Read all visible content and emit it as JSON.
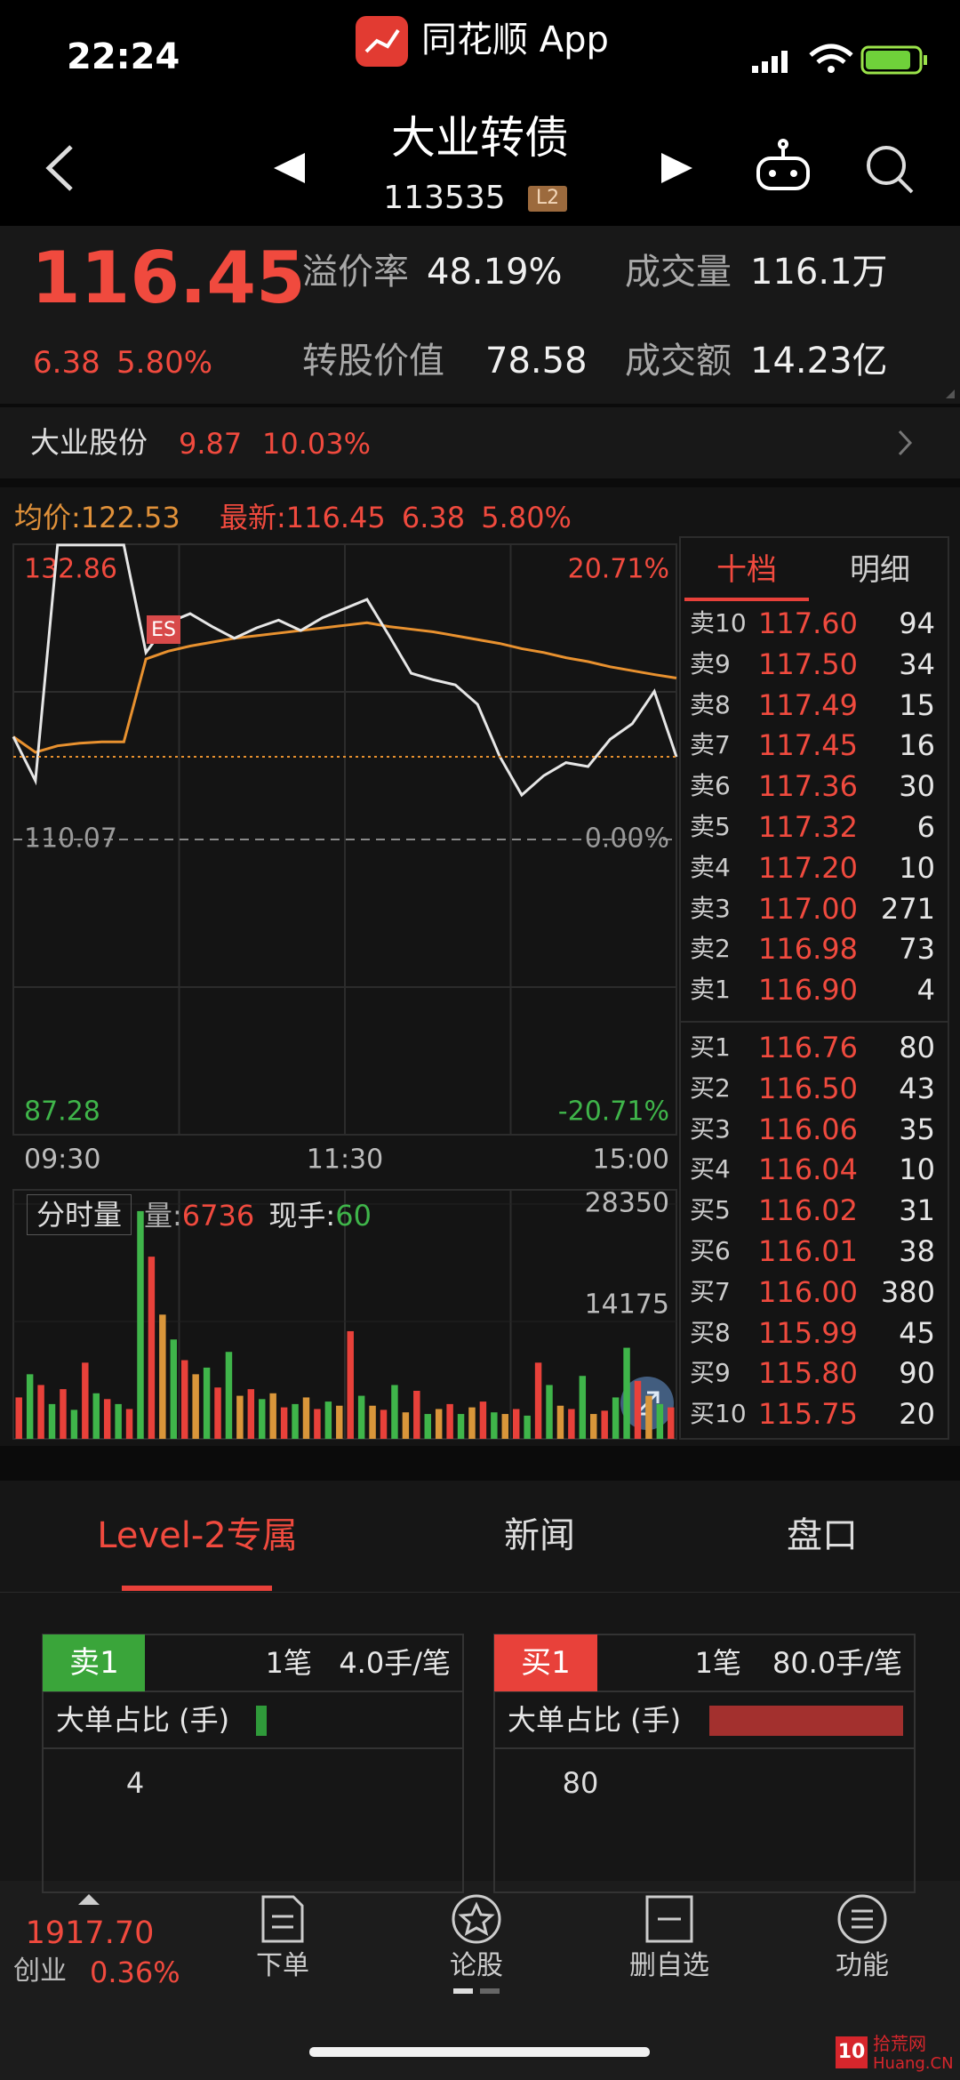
{
  "status_bar": {
    "time": "22:24",
    "app": "同花顺 App"
  },
  "header": {
    "title": "大业转债",
    "code": "113535",
    "badge": "L2"
  },
  "quote": {
    "price": "116.45",
    "change": "6.38",
    "change_pct": "5.80%",
    "items": [
      {
        "label": "溢价率",
        "value": "48.19%"
      },
      {
        "label": "成交量",
        "value": "116.1万"
      },
      {
        "label": "转股价值",
        "value": "78.58"
      },
      {
        "label": "成交额",
        "value": "14.23亿"
      }
    ]
  },
  "stock": {
    "name": "大业股份",
    "price": "9.87",
    "change_pct": "10.03%"
  },
  "chart_data": [
    {
      "type": "line",
      "xlim": [
        0,
        240
      ],
      "xticks": [
        {
          "value": 0,
          "label": "09:30"
        },
        {
          "value": 120,
          "label": "11:30"
        },
        {
          "value": 240,
          "label": "15:00"
        }
      ],
      "ylim": [
        87.28,
        132.86
      ],
      "yticks": [
        87.28,
        110.07,
        132.86
      ],
      "y2lim": [
        -20.71,
        20.71
      ],
      "y2ticks": [
        {
          "value": -20.71,
          "label": "-20.71%"
        },
        {
          "value": 0,
          "label": "0.00%"
        },
        {
          "value": 20.71,
          "label": "20.71%"
        }
      ],
      "tick_colors": [
        "#3fb54a",
        "#9a9a9a",
        "#f04a3e"
      ],
      "grid": true,
      "annotations": [
        "ES"
      ],
      "series": [
        {
          "name": "最新:",
          "color": "#e6e6e6",
          "values": [
            118.0,
            114.6,
            132.8,
            132.8,
            132.8,
            132.8,
            124.5,
            126.8,
            127.5,
            126.5,
            125.6,
            126.4,
            127.0,
            126.2,
            127.2,
            127.9,
            128.6,
            125.8,
            122.9,
            122.4,
            122.0,
            120.5,
            116.5,
            113.5,
            115.0,
            116.0,
            115.7,
            117.8,
            119.0,
            121.5,
            116.45
          ]
        },
        {
          "name": "均价:",
          "color": "#e8912f",
          "values": [
            118.0,
            116.8,
            117.3,
            117.5,
            117.6,
            117.6,
            124.0,
            124.6,
            125.0,
            125.3,
            125.6,
            125.8,
            126.0,
            126.2,
            126.4,
            126.6,
            126.8,
            126.5,
            126.3,
            126.1,
            125.8,
            125.5,
            125.2,
            124.8,
            124.5,
            124.1,
            123.8,
            123.4,
            123.1,
            122.8,
            122.53
          ]
        }
      ]
    },
    {
      "type": "bar",
      "ylim": [
        0,
        28350
      ],
      "yticks": [
        14175,
        28350
      ],
      "values": [
        5000,
        7800,
        6500,
        4200,
        6000,
        3500,
        9200,
        5500,
        4800,
        4200,
        3600,
        27500,
        22000,
        15000,
        12000,
        9500,
        7800,
        8600,
        6200,
        10500,
        5200,
        6000,
        4800,
        5500,
        3800,
        4200,
        5000,
        3600,
        4500,
        4000,
        13000,
        5200,
        4000,
        3500,
        6500,
        3200,
        5800,
        3000,
        3600,
        4200,
        3000,
        3800,
        4500,
        3200,
        3000,
        3600,
        2800,
        9200,
        6500,
        4000,
        3600,
        7600,
        3000,
        3400,
        5000,
        11000,
        7000,
        5200,
        4200,
        3800
      ],
      "colors": [
        "#e8413a",
        "#3fb54a",
        "#e8413a",
        "#3fb54a",
        "#e8413a",
        "#3fb54a",
        "#e8413a",
        "#3fb54a",
        "#e8413a",
        "#3fb54a",
        "#e8413a",
        "#3fb54a",
        "#e8413a",
        "#d9963a",
        "#3fb54a",
        "#e8413a",
        "#d9963a",
        "#3fb54a",
        "#e8413a",
        "#3fb54a",
        "#d9963a",
        "#e8413a",
        "#3fb54a",
        "#d9963a",
        "#e8413a",
        "#3fb54a",
        "#d9963a",
        "#e8413a",
        "#3fb54a",
        "#d9963a",
        "#e8413a",
        "#3fb54a",
        "#d9963a",
        "#e8413a",
        "#3fb54a",
        "#d9963a",
        "#e8413a",
        "#3fb54a",
        "#d9963a",
        "#e8413a",
        "#3fb54a",
        "#d9963a",
        "#e8413a",
        "#3fb54a",
        "#d9963a",
        "#e8413a",
        "#3fb54a",
        "#e8413a",
        "#3fb54a",
        "#d9963a",
        "#e8413a",
        "#3fb54a",
        "#d9963a",
        "#e8413a",
        "#3fb54a",
        "#3fb54a",
        "#e8413a",
        "#d9963a",
        "#3fb54a",
        "#e8413a"
      ]
    }
  ],
  "volume_header": {
    "title": "分时量",
    "vol_label": "量:",
    "vol": "6736",
    "hand_label": "现手:",
    "hand": "60"
  },
  "order_book": {
    "tabs": [
      "十档",
      "明细"
    ],
    "asks": [
      {
        "label": "卖10",
        "price": "117.60",
        "qty": "94"
      },
      {
        "label": "卖9",
        "price": "117.50",
        "qty": "34"
      },
      {
        "label": "卖8",
        "price": "117.49",
        "qty": "15"
      },
      {
        "label": "卖7",
        "price": "117.45",
        "qty": "16"
      },
      {
        "label": "卖6",
        "price": "117.36",
        "qty": "30"
      },
      {
        "label": "卖5",
        "price": "117.32",
        "qty": "6"
      },
      {
        "label": "卖4",
        "price": "117.20",
        "qty": "10"
      },
      {
        "label": "卖3",
        "price": "117.00",
        "qty": "271"
      },
      {
        "label": "卖2",
        "price": "116.98",
        "qty": "73"
      },
      {
        "label": "卖1",
        "price": "116.90",
        "qty": "4"
      }
    ],
    "bids": [
      {
        "label": "买1",
        "price": "116.76",
        "qty": "80"
      },
      {
        "label": "买2",
        "price": "116.50",
        "qty": "43"
      },
      {
        "label": "买3",
        "price": "116.06",
        "qty": "35"
      },
      {
        "label": "买4",
        "price": "116.04",
        "qty": "10"
      },
      {
        "label": "买5",
        "price": "116.02",
        "qty": "31"
      },
      {
        "label": "买6",
        "price": "116.01",
        "qty": "38"
      },
      {
        "label": "买7",
        "price": "116.00",
        "qty": "380"
      },
      {
        "label": "买8",
        "price": "115.99",
        "qty": "45"
      },
      {
        "label": "买9",
        "price": "115.80",
        "qty": "90"
      },
      {
        "label": "买10",
        "price": "115.75",
        "qty": "20"
      }
    ]
  },
  "tabs": [
    "Level-2专属",
    "新闻",
    "盘口"
  ],
  "cards": [
    {
      "side": "卖1",
      "count": "1笔",
      "avg": "4.0手/笔",
      "ratio_label": "大单占比 (手)",
      "value": "4"
    },
    {
      "side": "买1",
      "count": "1笔",
      "avg": "80.0手/笔",
      "ratio_label": "大单占比 (手)",
      "value": "80"
    }
  ],
  "nav": {
    "index_value": "1917.70",
    "index_name": "创业",
    "index_pct": "0.36%",
    "items": [
      "下单",
      "论股",
      "删自选",
      "功能"
    ]
  },
  "watermark": {
    "badge": "10",
    "site": "拾荒网",
    "domain": "Huang.CN"
  }
}
